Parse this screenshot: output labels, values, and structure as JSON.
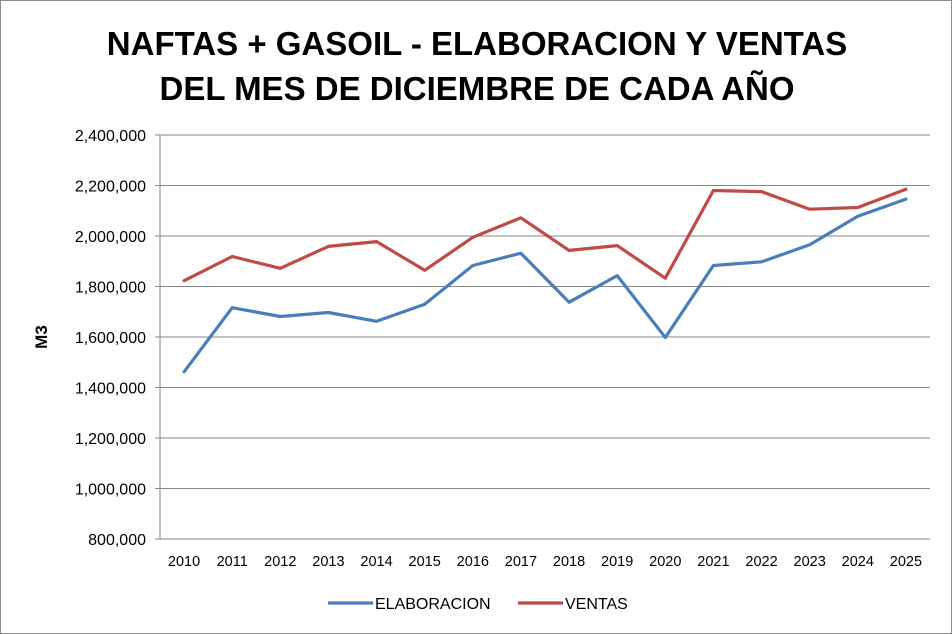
{
  "chart_data": {
    "type": "line",
    "title_line1": "NAFTAS + GASOIL - ELABORACION Y VENTAS",
    "title_line2": "DEL MES DE DICIEMBRE DE CADA AÑO",
    "xlabel": "",
    "ylabel": "M3",
    "ylim": [
      800000,
      2400000
    ],
    "yticks": [
      800000,
      1000000,
      1200000,
      1400000,
      1600000,
      1800000,
      2000000,
      2200000,
      2400000
    ],
    "ytick_labels": [
      "800,000",
      "1,000,000",
      "1,200,000",
      "1,400,000",
      "1,600,000",
      "1,800,000",
      "2,000,000",
      "2,200,000",
      "2,400,000"
    ],
    "categories": [
      "2010",
      "2011",
      "2012",
      "2013",
      "2014",
      "2015",
      "2016",
      "2017",
      "2018",
      "2019",
      "2020",
      "2021",
      "2022",
      "2023",
      "2024",
      "2025"
    ],
    "grid": true,
    "legend_position": "bottom",
    "series": [
      {
        "name": "ELABORACION",
        "color": "#4a7ebb",
        "values": [
          1462000,
          1716000,
          1681000,
          1697000,
          1662000,
          1730000,
          1883000,
          1932000,
          1738000,
          1843000,
          1598000,
          1883000,
          1898000,
          1965000,
          2078000,
          2146000
        ]
      },
      {
        "name": "VENTAS",
        "color": "#be4b48",
        "values": [
          1823000,
          1919000,
          1872000,
          1959000,
          1978000,
          1864000,
          1995000,
          2072000,
          1943000,
          1962000,
          1833000,
          2180000,
          2176000,
          2106000,
          2113000,
          2185000
        ]
      }
    ]
  }
}
